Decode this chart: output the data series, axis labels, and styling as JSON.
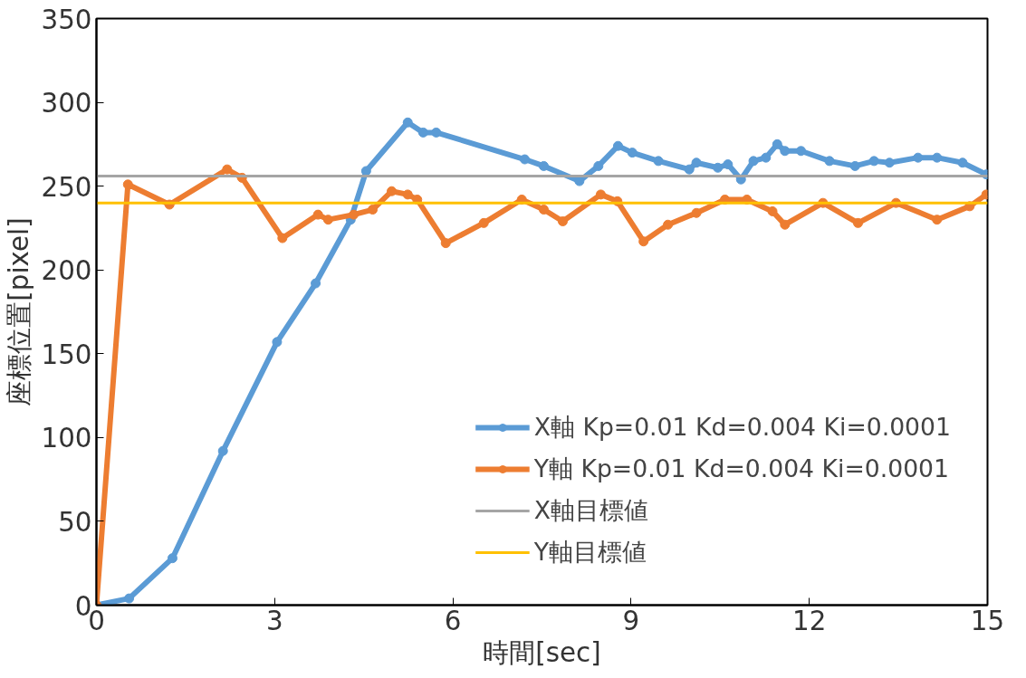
{
  "chart_data": {
    "type": "line",
    "xlabel": "時間[sec]",
    "ylabel": "座標位置[pixel]",
    "xlim": [
      0,
      15
    ],
    "xticks": [
      0,
      3,
      6,
      9,
      12,
      15
    ],
    "ylim": [
      0,
      350
    ],
    "yticks": [
      0,
      50,
      100,
      150,
      200,
      250,
      300,
      350
    ],
    "grid": false,
    "legend": "bottom right",
    "marker": "circle",
    "line_style": "solid",
    "series": [
      {
        "name": "X軸 Kp=0.01 Kd=0.004 Ki=0.0001",
        "color": "#5b9bd5",
        "x": [
          0,
          0.55,
          1.28,
          2.13,
          3.04,
          3.69,
          4.28,
          4.54,
          5.24,
          5.5,
          5.72,
          7.21,
          7.53,
          8.13,
          8.45,
          8.78,
          9.02,
          9.46,
          9.98,
          10.1,
          10.46,
          10.63,
          10.85,
          11.06,
          11.27,
          11.46,
          11.59,
          11.86,
          12.34,
          12.77,
          13.09,
          13.35,
          13.83,
          14.15,
          14.58,
          14.98
        ],
        "values": [
          0,
          4,
          28,
          92,
          157,
          192,
          230,
          259,
          288,
          282,
          282,
          266,
          262,
          253,
          262,
          274,
          270,
          265,
          260,
          264,
          261,
          263,
          254,
          265,
          267,
          275,
          271,
          271,
          265,
          262,
          265,
          264,
          267,
          267,
          264,
          257
        ]
      },
      {
        "name": "Y軸 Kp=0.01 Kd=0.004 Ki=0.0001",
        "color": "#ed7d31",
        "x": [
          0,
          0.53,
          1.23,
          2.2,
          2.45,
          3.13,
          3.73,
          3.9,
          4.33,
          4.65,
          4.97,
          5.24,
          5.4,
          5.88,
          6.52,
          7.16,
          7.53,
          7.85,
          8.49,
          8.77,
          9.21,
          9.62,
          10.1,
          10.58,
          10.95,
          11.38,
          11.59,
          12.23,
          12.82,
          13.46,
          14.15,
          14.7,
          14.98
        ],
        "values": [
          0,
          251,
          239,
          260,
          255,
          219,
          233,
          230,
          233,
          236,
          247,
          245,
          242,
          216,
          228,
          242,
          236,
          229,
          245,
          241,
          217,
          227,
          234,
          242,
          242,
          235,
          227,
          240,
          228,
          240,
          230,
          238,
          245
        ]
      }
    ],
    "ref_lines": [
      {
        "axis": "y",
        "value": 256,
        "label": "X軸目標値",
        "color": "#a5a5a5"
      },
      {
        "axis": "y",
        "value": 240,
        "label": "Y軸目標値",
        "color": "#ffc000"
      }
    ]
  }
}
